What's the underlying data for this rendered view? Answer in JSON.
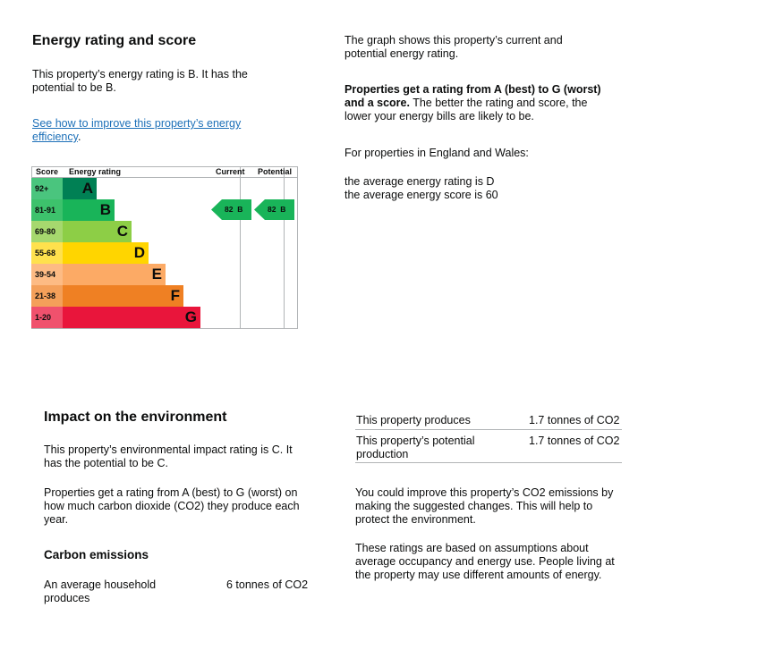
{
  "energy": {
    "title": "Energy rating and score",
    "rating_text": "This property’s energy rating is B. It has the potential to be B.",
    "link_text": "See how to improve this property’s energy efficiency",
    "link_suffix": "."
  },
  "chart_data": {
    "type": "table",
    "headers": {
      "score": "Score",
      "rating": "Energy rating",
      "current": "Current",
      "potential": "Potential"
    },
    "bands": [
      {
        "range": "92+",
        "letter": "A",
        "color": "#008054",
        "score_color": "#4ac57e"
      },
      {
        "range": "81-91",
        "letter": "B",
        "color": "#19b459",
        "score_color": "#3dc26c"
      },
      {
        "range": "69-80",
        "letter": "C",
        "color": "#8dce46",
        "score_color": "#a6d86e"
      },
      {
        "range": "55-68",
        "letter": "D",
        "color": "#ffd500",
        "score_color": "#ffe14d"
      },
      {
        "range": "39-54",
        "letter": "E",
        "color": "#fcaa65",
        "score_color": "#fdbb84"
      },
      {
        "range": "21-38",
        "letter": "F",
        "color": "#ef8023",
        "score_color": "#f4a05a"
      },
      {
        "range": "1-20",
        "letter": "G",
        "color": "#e9153b",
        "score_color": "#f0516d"
      }
    ],
    "current": {
      "score": "82",
      "letter": "B",
      "band_index": 1
    },
    "potential": {
      "score": "82",
      "letter": "B",
      "band_index": 1
    }
  },
  "graph_info": {
    "intro": "The graph shows this property’s current and potential energy rating.",
    "bold_text": "Properties get a rating from A (best) to G (worst) and a score.",
    "rest_text": " The better the rating and score, the lower your energy bills are likely to be.",
    "england_wales": "For properties in England and Wales:",
    "avg_rating": "the average energy rating is D",
    "avg_score": "the average energy score is 60"
  },
  "environment": {
    "title": "Impact on the environment",
    "rating_text": "This property’s environmental impact rating is C. It has the potential to be C.",
    "rating_explain": "Properties get a rating from A (best) to G (worst) on how much carbon dioxide (CO2) they produce each year.",
    "carbon_title": "Carbon emissions",
    "avg_household_label": "An average household produces",
    "avg_household_value": "6 tonnes of CO2",
    "produces_label": "This property produces",
    "produces_value": "1.7 tonnes of CO2",
    "potential_label": "This property’s potential production",
    "potential_value": "1.7 tonnes of CO2",
    "improve_text": "You could improve this property’s CO2 emissions by making the suggested changes. This will help to protect the environment.",
    "assumptions_text": "These ratings are based on assumptions about average occupancy and energy use. People living at the property may use different amounts of energy."
  }
}
